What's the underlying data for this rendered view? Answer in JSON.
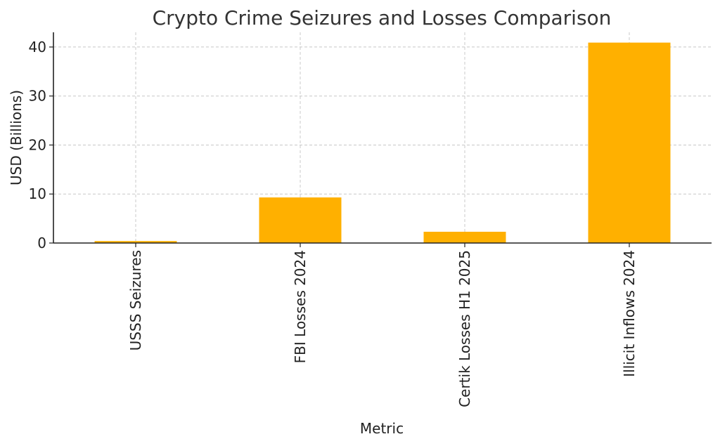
{
  "chart_data": {
    "type": "bar",
    "title": "Crypto Crime Seizures and Losses Comparison",
    "xlabel": "Metric",
    "ylabel": "USD (Billions)",
    "categories": [
      "USSS Seizures",
      "FBI Losses 2024",
      "Certik Losses H1 2025",
      "Illicit Inflows 2024"
    ],
    "values": [
      0.4,
      9.3,
      2.3,
      40.9
    ],
    "ylim": [
      0,
      43
    ],
    "yticks": [
      0,
      10,
      20,
      30,
      40
    ],
    "grid": true,
    "bar_color": "#FFB000"
  }
}
